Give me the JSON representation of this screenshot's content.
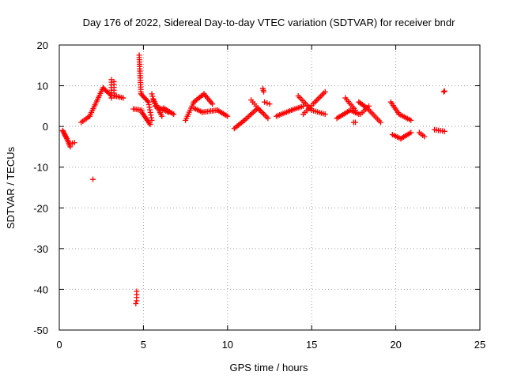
{
  "chart_data": {
    "type": "scatter",
    "title": "Day 176 of 2022, Sidereal Day-to-day VTEC variation (SDTVAR) for receiver bndr",
    "xlabel": "GPS time / hours",
    "ylabel": "SDTVAR / TECUs",
    "xlim": [
      0,
      25
    ],
    "ylim": [
      -50,
      20
    ],
    "xticks": [
      0,
      5,
      10,
      15,
      20,
      25
    ],
    "xtick_labels": [
      "0",
      "5",
      "10",
      "15",
      "20",
      "25"
    ],
    "yticks": [
      20,
      10,
      0,
      -10,
      -20,
      -30,
      -40,
      -50
    ],
    "ytick_labels": [
      "20",
      "10",
      "0",
      "-10",
      "-20",
      "-30",
      "-40",
      "-50"
    ],
    "grid": true,
    "marker": "+",
    "color": "#ff0000",
    "segments": [
      {
        "x0": 0.2,
        "y0": -1.0,
        "x1": 0.45,
        "y1": -3.0,
        "n": 8
      },
      {
        "x0": 0.45,
        "y0": -3.0,
        "x1": 0.65,
        "y1": -5.0,
        "n": 6
      },
      {
        "x0": 0.65,
        "y0": -4.2,
        "x1": 0.9,
        "y1": -4.0,
        "n": 3
      },
      {
        "x0": 1.3,
        "y0": 1.0,
        "x1": 1.8,
        "y1": 2.5,
        "n": 6
      },
      {
        "x0": 1.8,
        "y0": 2.5,
        "x1": 2.6,
        "y1": 9.5,
        "n": 16
      },
      {
        "x0": 2.6,
        "y0": 9.5,
        "x1": 3.1,
        "y1": 7.5,
        "n": 8
      },
      {
        "x0": 3.1,
        "y0": 11.5,
        "x1": 3.1,
        "y1": 7.0,
        "n": 8
      },
      {
        "x0": 3.25,
        "y0": 11.0,
        "x1": 3.25,
        "y1": 7.5,
        "n": 6
      },
      {
        "x0": 3.3,
        "y0": 7.5,
        "x1": 3.8,
        "y1": 7.0,
        "n": 6
      },
      {
        "x0": 4.4,
        "y0": 4.3,
        "x1": 4.9,
        "y1": 4.0,
        "n": 6
      },
      {
        "x0": 4.9,
        "y0": 3.5,
        "x1": 5.4,
        "y1": 0.5,
        "n": 10
      },
      {
        "x0": 4.75,
        "y0": 17.5,
        "x1": 4.85,
        "y1": 8.0,
        "n": 18
      },
      {
        "x0": 4.85,
        "y0": 8.0,
        "x1": 5.3,
        "y1": 6.0,
        "n": 8
      },
      {
        "x0": 5.3,
        "y0": 6.0,
        "x1": 5.5,
        "y1": 1.5,
        "n": 8
      },
      {
        "x0": 5.5,
        "y0": 8.0,
        "x1": 5.7,
        "y1": 5.0,
        "n": 6
      },
      {
        "x0": 5.6,
        "y0": 6.5,
        "x1": 6.1,
        "y1": 2.5,
        "n": 10
      },
      {
        "x0": 5.7,
        "y0": 5.0,
        "x1": 6.5,
        "y1": 3.5,
        "n": 10
      },
      {
        "x0": 6.2,
        "y0": 4.5,
        "x1": 6.8,
        "y1": 3.0,
        "n": 8
      },
      {
        "x0": 7.5,
        "y0": 1.5,
        "x1": 8.0,
        "y1": 6.0,
        "n": 10
      },
      {
        "x0": 8.0,
        "y0": 6.0,
        "x1": 8.6,
        "y1": 8.0,
        "n": 8
      },
      {
        "x0": 8.6,
        "y0": 8.0,
        "x1": 9.1,
        "y1": 5.5,
        "n": 8
      },
      {
        "x0": 8.0,
        "y0": 4.5,
        "x1": 8.5,
        "y1": 3.5,
        "n": 6
      },
      {
        "x0": 8.5,
        "y0": 3.5,
        "x1": 9.4,
        "y1": 4.0,
        "n": 10
      },
      {
        "x0": 9.4,
        "y0": 4.0,
        "x1": 10.0,
        "y1": 2.5,
        "n": 8
      },
      {
        "x0": 10.4,
        "y0": -0.5,
        "x1": 11.0,
        "y1": 1.5,
        "n": 8
      },
      {
        "x0": 11.0,
        "y0": 1.5,
        "x1": 11.8,
        "y1": 4.5,
        "n": 10
      },
      {
        "x0": 11.8,
        "y0": 4.5,
        "x1": 12.4,
        "y1": 2.0,
        "n": 8
      },
      {
        "x0": 11.4,
        "y0": 6.5,
        "x1": 11.9,
        "y1": 4.0,
        "n": 6
      },
      {
        "x0": 12.1,
        "y0": 9.3,
        "x1": 12.15,
        "y1": 8.5,
        "n": 3
      },
      {
        "x0": 12.2,
        "y0": 6.0,
        "x1": 12.5,
        "y1": 5.5,
        "n": 3
      },
      {
        "x0": 12.9,
        "y0": 2.5,
        "x1": 13.8,
        "y1": 4.0,
        "n": 10
      },
      {
        "x0": 13.8,
        "y0": 4.0,
        "x1": 14.5,
        "y1": 5.0,
        "n": 8
      },
      {
        "x0": 14.2,
        "y0": 7.5,
        "x1": 15.0,
        "y1": 4.0,
        "n": 10
      },
      {
        "x0": 15.0,
        "y0": 4.0,
        "x1": 15.8,
        "y1": 3.0,
        "n": 8
      },
      {
        "x0": 14.5,
        "y0": 3.0,
        "x1": 15.2,
        "y1": 6.0,
        "n": 8
      },
      {
        "x0": 15.2,
        "y0": 6.0,
        "x1": 15.8,
        "y1": 8.5,
        "n": 8
      },
      {
        "x0": 16.5,
        "y0": 2.0,
        "x1": 17.3,
        "y1": 4.0,
        "n": 10
      },
      {
        "x0": 17.3,
        "y0": 4.0,
        "x1": 17.8,
        "y1": 3.0,
        "n": 6
      },
      {
        "x0": 17.0,
        "y0": 7.0,
        "x1": 17.6,
        "y1": 4.0,
        "n": 8
      },
      {
        "x0": 17.5,
        "y0": 1.0,
        "x1": 17.6,
        "y1": 1.0,
        "n": 2
      },
      {
        "x0": 17.8,
        "y0": 6.0,
        "x1": 18.3,
        "y1": 4.5,
        "n": 8
      },
      {
        "x0": 18.3,
        "y0": 4.5,
        "x1": 19.1,
        "y1": 1.0,
        "n": 10
      },
      {
        "x0": 17.9,
        "y0": 3.0,
        "x1": 18.4,
        "y1": 5.0,
        "n": 6
      },
      {
        "x0": 19.7,
        "y0": 6.0,
        "x1": 20.2,
        "y1": 3.0,
        "n": 8
      },
      {
        "x0": 20.2,
        "y0": 3.0,
        "x1": 20.9,
        "y1": 1.5,
        "n": 8
      },
      {
        "x0": 19.8,
        "y0": -2.0,
        "x1": 20.3,
        "y1": -3.0,
        "n": 6
      },
      {
        "x0": 20.3,
        "y0": -3.0,
        "x1": 20.9,
        "y1": -1.5,
        "n": 8
      },
      {
        "x0": 21.4,
        "y0": -1.5,
        "x1": 21.7,
        "y1": -2.5,
        "n": 4
      },
      {
        "x0": 22.3,
        "y0": -0.8,
        "x1": 22.9,
        "y1": -1.2,
        "n": 6
      }
    ],
    "points": [
      [
        2.0,
        -13.0
      ],
      [
        4.6,
        -40.5
      ],
      [
        4.6,
        -41.3
      ],
      [
        4.6,
        -42.0
      ],
      [
        4.6,
        -42.8
      ],
      [
        4.55,
        -43.5
      ],
      [
        22.85,
        8.5
      ],
      [
        22.9,
        8.7
      ]
    ]
  }
}
